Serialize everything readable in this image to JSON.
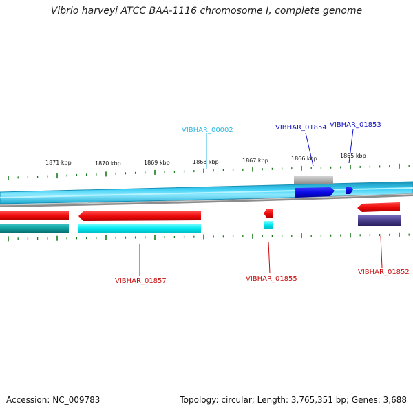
{
  "title": "Vibrio harveyi ATCC BAA-1116 chromosome I, complete genome",
  "footer": {
    "accession": "Accession: NC_009783",
    "summary": "Topology: circular; Length: 3,765,351 bp; Genes: 3,688"
  },
  "colors": {
    "backbone_light": "#3fd0f5",
    "backbone_dark": "#1690b5",
    "backbone_grey": "#8c8c8c",
    "forward_gene": "#0a0ae6",
    "reverse_gene": "#ee0a0a",
    "cds_cyan": "#00e6ef",
    "cds_teal": "#0fa0a0",
    "feature_grey": "#b5b5b5",
    "feature_purple": "#4a3f8c",
    "tick": "#1a7a1a",
    "label_cyan": "#29b7e6",
    "label_blue": "#1010c8",
    "label_red": "#c80a0a"
  },
  "scale": {
    "tick_labels": [
      "1871 kbp",
      "1870 kbp",
      "1869 kbp",
      "1868 kbp",
      "1867 kbp",
      "1866 kbp",
      "1865 kbp"
    ]
  },
  "genes": [
    {
      "id": "VIBHAR_00002",
      "color_key": "label_cyan"
    },
    {
      "id": "VIBHAR_01854",
      "color_key": "label_blue"
    },
    {
      "id": "VIBHAR_01853",
      "color_key": "label_blue"
    },
    {
      "id": "VIBHAR_01857",
      "color_key": "label_red"
    },
    {
      "id": "VIBHAR_01855",
      "color_key": "label_red"
    },
    {
      "id": "VIBHAR_01852",
      "color_key": "label_red"
    }
  ]
}
